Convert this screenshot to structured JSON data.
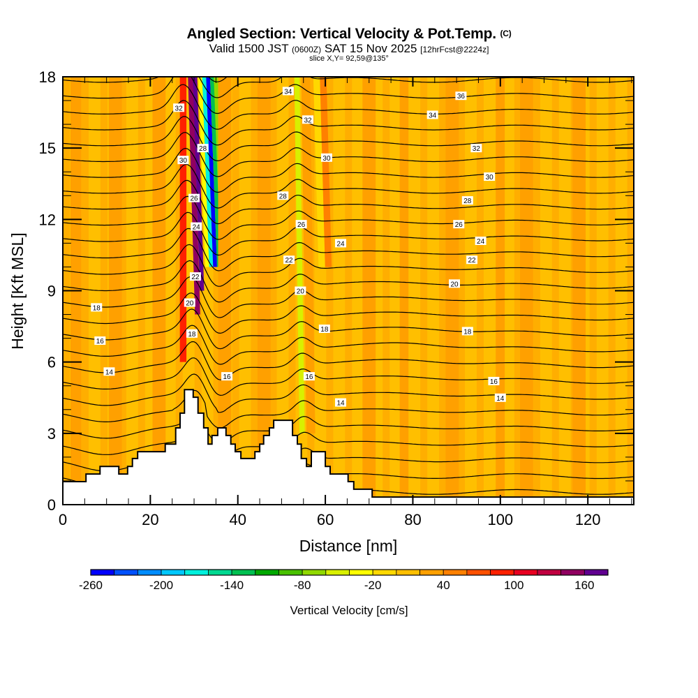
{
  "header": {
    "title": "Angled Section: Vertical Velocity & Pot.Temp.",
    "title_suffix": "(C)",
    "valid_prefix": "Valid 1500 JST",
    "valid_utc": "(0600Z)",
    "valid_date": "SAT 15 Nov 2025",
    "forecast": "[12hrFcst@2224z]",
    "slice": "slice X,Y= 92,59@135°"
  },
  "chart_data": {
    "type": "heatmap",
    "title": "Angled Section: Vertical Velocity & Pot.Temp.",
    "xlabel": "Distance [nm]",
    "ylabel": "Height [Kft MSL]",
    "xlim": [
      0,
      130.5
    ],
    "ylim": [
      0,
      18
    ],
    "x_ticks": [
      0,
      20,
      40,
      60,
      80,
      100,
      120
    ],
    "x_tick_labels": [
      "0",
      "20",
      "40",
      "60",
      "80",
      "100",
      "120"
    ],
    "x_minor_step": 5,
    "y_ticks": [
      0,
      3,
      6,
      9,
      12,
      15,
      18
    ],
    "y_tick_labels": [
      "0",
      "3",
      "6",
      "9",
      "12",
      "15",
      "18"
    ],
    "y_minor_step": 1,
    "colorbar": {
      "title": "Vertical Velocity [cm/s]",
      "min": -260,
      "step": 20,
      "tick_values": [
        -260,
        -200,
        -140,
        -80,
        -20,
        40,
        100,
        160
      ],
      "tick_labels": [
        "-260",
        "-200",
        "-140",
        "-80",
        "-20",
        "40",
        "100",
        "160"
      ],
      "colors": [
        "#0000ff",
        "#0050ff",
        "#008cff",
        "#00c8ff",
        "#00f0dc",
        "#00d890",
        "#00c050",
        "#00a800",
        "#48c000",
        "#90d800",
        "#d8f000",
        "#ffff00",
        "#ffd800",
        "#ffbf00",
        "#ffa000",
        "#ff8000",
        "#ff5000",
        "#ff2000",
        "#e80020",
        "#c00040",
        "#900060",
        "#600090"
      ]
    },
    "velocity_field": {
      "background_cm_s": 0,
      "features": [
        {
          "x": 3,
          "width": 2.5,
          "h0": 0,
          "h1": 18,
          "value": 20
        },
        {
          "x": 12,
          "width": 3,
          "h0": 0,
          "h1": 18,
          "value": 20
        },
        {
          "x": 22,
          "width": 3,
          "h0": 0,
          "h1": 18,
          "value": 20
        },
        {
          "x": 27.5,
          "width": 1.5,
          "h0": 6,
          "h1": 18,
          "value": 80
        },
        {
          "x": 29.2,
          "width": 1.2,
          "h0": 8,
          "h1": 18,
          "value": 140
        },
        {
          "x": 30.2,
          "width": 1.0,
          "h0": 9,
          "h1": 18,
          "value": 170
        },
        {
          "x": 31.4,
          "width": 0.9,
          "h0": 10,
          "h1": 18,
          "value": -40
        },
        {
          "x": 32.3,
          "width": 0.9,
          "h0": 10,
          "h1": 18,
          "value": -180
        },
        {
          "x": 33.2,
          "width": 0.9,
          "h0": 10,
          "h1": 18,
          "value": -260
        },
        {
          "x": 34.1,
          "width": 0.9,
          "h0": 10,
          "h1": 18,
          "value": -140
        },
        {
          "x": 35.0,
          "width": 1.0,
          "h0": 10,
          "h1": 18,
          "value": -80
        },
        {
          "x": 37,
          "width": 3,
          "h0": 0,
          "h1": 18,
          "value": 20
        },
        {
          "x": 46,
          "width": 3,
          "h0": 0,
          "h1": 18,
          "value": 20
        },
        {
          "x": 53.5,
          "width": 1.2,
          "h0": 3,
          "h1": 18,
          "value": -60
        },
        {
          "x": 55.5,
          "width": 2.0,
          "h0": 3,
          "h1": 18,
          "value": 20
        },
        {
          "x": 58,
          "width": 1.5,
          "h0": 10,
          "h1": 18,
          "value": -20
        },
        {
          "x": 59.5,
          "width": 1.5,
          "h0": 10,
          "h1": 18,
          "value": 40
        },
        {
          "x": 70,
          "width": 3,
          "h0": 0,
          "h1": 18,
          "value": 20
        },
        {
          "x": 78,
          "width": 2,
          "h0": 0,
          "h1": 18,
          "value": 20
        },
        {
          "x": 89,
          "width": 3,
          "h0": 0,
          "h1": 18,
          "value": 20
        },
        {
          "x": 100,
          "width": 2,
          "h0": 0,
          "h1": 18,
          "value": 20
        },
        {
          "x": 106,
          "width": 3,
          "h0": 0,
          "h1": 18,
          "value": 20
        },
        {
          "x": 118,
          "width": 3,
          "h0": 0,
          "h1": 18,
          "value": 20
        }
      ]
    },
    "contour_interval_C": 1,
    "contour_labels": [
      {
        "value": "32",
        "x": 26.5,
        "y": 16.7
      },
      {
        "value": "30",
        "x": 27.5,
        "y": 14.5
      },
      {
        "value": "28",
        "x": 32,
        "y": 15.0
      },
      {
        "value": "26",
        "x": 30,
        "y": 12.9
      },
      {
        "value": "24",
        "x": 30.5,
        "y": 11.7
      },
      {
        "value": "22",
        "x": 30.3,
        "y": 9.6
      },
      {
        "value": "20",
        "x": 29,
        "y": 8.5
      },
      {
        "value": "18",
        "x": 29.5,
        "y": 7.2
      },
      {
        "value": "18",
        "x": 7.7,
        "y": 8.3
      },
      {
        "value": "16",
        "x": 8.5,
        "y": 6.9
      },
      {
        "value": "14",
        "x": 10.6,
        "y": 5.6
      },
      {
        "value": "16",
        "x": 37.5,
        "y": 5.4
      },
      {
        "value": "34",
        "x": 51.5,
        "y": 17.4
      },
      {
        "value": "32",
        "x": 56,
        "y": 16.2
      },
      {
        "value": "30",
        "x": 60.3,
        "y": 14.6
      },
      {
        "value": "28",
        "x": 50.3,
        "y": 13.0
      },
      {
        "value": "26",
        "x": 54.5,
        "y": 11.8
      },
      {
        "value": "24",
        "x": 63.5,
        "y": 11.0
      },
      {
        "value": "22",
        "x": 51.7,
        "y": 10.3
      },
      {
        "value": "20",
        "x": 54.3,
        "y": 9.0
      },
      {
        "value": "18",
        "x": 59.8,
        "y": 7.4
      },
      {
        "value": "16",
        "x": 56.3,
        "y": 5.4
      },
      {
        "value": "14",
        "x": 63.5,
        "y": 4.3
      },
      {
        "value": "36",
        "x": 91,
        "y": 17.2
      },
      {
        "value": "34",
        "x": 84.5,
        "y": 16.4
      },
      {
        "value": "32",
        "x": 94.5,
        "y": 15.0
      },
      {
        "value": "30",
        "x": 97.5,
        "y": 13.8
      },
      {
        "value": "28",
        "x": 92.5,
        "y": 12.8
      },
      {
        "value": "26",
        "x": 90.5,
        "y": 11.8
      },
      {
        "value": "24",
        "x": 95.5,
        "y": 11.1
      },
      {
        "value": "22",
        "x": 93.5,
        "y": 10.3
      },
      {
        "value": "20",
        "x": 89.5,
        "y": 9.3
      },
      {
        "value": "18",
        "x": 92.5,
        "y": 7.3
      },
      {
        "value": "16",
        "x": 98.5,
        "y": 5.2
      },
      {
        "value": "14",
        "x": 100,
        "y": 4.5
      }
    ],
    "terrain": [
      [
        0,
        0.97
      ],
      [
        5.3,
        0.97
      ],
      [
        5.3,
        1.29
      ],
      [
        8.5,
        1.29
      ],
      [
        8.5,
        1.61
      ],
      [
        12.8,
        1.61
      ],
      [
        12.8,
        1.29
      ],
      [
        14.8,
        1.29
      ],
      [
        14.8,
        1.61
      ],
      [
        15.9,
        1.61
      ],
      [
        15.9,
        1.94
      ],
      [
        17.1,
        1.94
      ],
      [
        17.1,
        2.23
      ],
      [
        23.4,
        2.23
      ],
      [
        23.4,
        2.55
      ],
      [
        25.8,
        2.55
      ],
      [
        25.8,
        3.23
      ],
      [
        26.8,
        3.23
      ],
      [
        26.8,
        3.85
      ],
      [
        27.8,
        3.85
      ],
      [
        27.8,
        4.84
      ],
      [
        29.8,
        4.84
      ],
      [
        29.8,
        4.52
      ],
      [
        30.9,
        4.52
      ],
      [
        30.9,
        3.85
      ],
      [
        32.2,
        3.85
      ],
      [
        32.2,
        3.23
      ],
      [
        33.2,
        3.23
      ],
      [
        33.2,
        2.55
      ],
      [
        34.1,
        2.55
      ],
      [
        34.1,
        2.91
      ],
      [
        35.4,
        2.91
      ],
      [
        35.4,
        3.23
      ],
      [
        37.3,
        3.23
      ],
      [
        37.3,
        2.91
      ],
      [
        38.4,
        2.91
      ],
      [
        38.4,
        2.55
      ],
      [
        39.4,
        2.55
      ],
      [
        39.4,
        2.23
      ],
      [
        40.7,
        2.23
      ],
      [
        40.7,
        1.94
      ],
      [
        43.9,
        1.94
      ],
      [
        43.9,
        2.23
      ],
      [
        45.0,
        2.23
      ],
      [
        45.0,
        2.55
      ],
      [
        45.9,
        2.55
      ],
      [
        45.9,
        2.91
      ],
      [
        47.2,
        2.91
      ],
      [
        47.2,
        3.23
      ],
      [
        48.2,
        3.23
      ],
      [
        48.2,
        3.55
      ],
      [
        52.5,
        3.55
      ],
      [
        52.5,
        2.91
      ],
      [
        53.6,
        2.91
      ],
      [
        53.6,
        2.55
      ],
      [
        54.5,
        2.55
      ],
      [
        54.5,
        1.94
      ],
      [
        55.7,
        1.94
      ],
      [
        55.7,
        1.61
      ],
      [
        56.8,
        1.61
      ],
      [
        56.8,
        2.23
      ],
      [
        60.0,
        2.23
      ],
      [
        60.0,
        1.61
      ],
      [
        61.1,
        1.61
      ],
      [
        61.1,
        1.29
      ],
      [
        65.2,
        1.29
      ],
      [
        65.2,
        0.97
      ],
      [
        66.5,
        0.97
      ],
      [
        66.5,
        0.65
      ],
      [
        70.7,
        0.65
      ],
      [
        70.7,
        0.32
      ],
      [
        130.5,
        0.32
      ]
    ]
  }
}
